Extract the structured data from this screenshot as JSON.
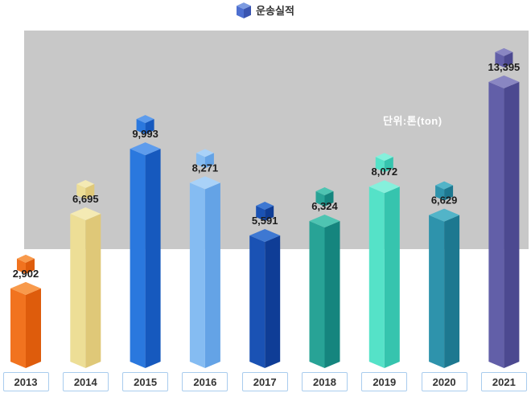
{
  "legend": {
    "label": "운송실적",
    "cube_colors": {
      "top": "#7d9be0",
      "left": "#4d6fd0",
      "right": "#3a55b0"
    }
  },
  "unit_label": "단위:톤(ton)",
  "colors": {
    "page_background": "#ffffff",
    "plot_background": "#c8c8c8",
    "value_label": "#1c1c1c",
    "unit_label_text": "#ffffff",
    "year_box_border": "#a9ccee",
    "year_box_text": "#333333"
  },
  "chart_data": {
    "type": "bar",
    "title": "운송실적",
    "series_name": "운송실적",
    "unit": "단위:톤(ton)",
    "categories": [
      "2013",
      "2014",
      "2015",
      "2016",
      "2017",
      "2018",
      "2019",
      "2020",
      "2021"
    ],
    "values": [
      2902,
      6695,
      9993,
      8271,
      5591,
      6324,
      8072,
      6629,
      13395
    ],
    "value_labels": [
      "2,902",
      "6,695",
      "9,993",
      "8,271",
      "5,591",
      "6,324",
      "8,072",
      "6,629",
      "13,395"
    ],
    "xlabel": "",
    "ylabel": "",
    "ylim": [
      0,
      16000
    ],
    "grid": false,
    "axis_ticks_visible": false,
    "legend_position": "top-center",
    "bar_style": "3d-cube-corner-first",
    "bar_colors": [
      {
        "left": "#f1731f",
        "right": "#de5c0c",
        "top": "#f89a4c"
      },
      {
        "left": "#edde96",
        "right": "#dfc878",
        "top": "#f4eab4"
      },
      {
        "left": "#2a78de",
        "right": "#1659be",
        "top": "#5e9cec"
      },
      {
        "left": "#85bcf2",
        "right": "#64a3e6",
        "top": "#a9d2f8"
      },
      {
        "left": "#1a52b4",
        "right": "#0f3d96",
        "top": "#3e78d2"
      },
      {
        "left": "#28a396",
        "right": "#15857e",
        "top": "#4ec4b2"
      },
      {
        "left": "#55e2c8",
        "right": "#36c4ae",
        "top": "#86f0dc"
      },
      {
        "left": "#2e93ac",
        "right": "#1d7890",
        "top": "#52b4c8"
      },
      {
        "left": "#625fa8",
        "right": "#4c4990",
        "top": "#8986c2"
      }
    ]
  }
}
